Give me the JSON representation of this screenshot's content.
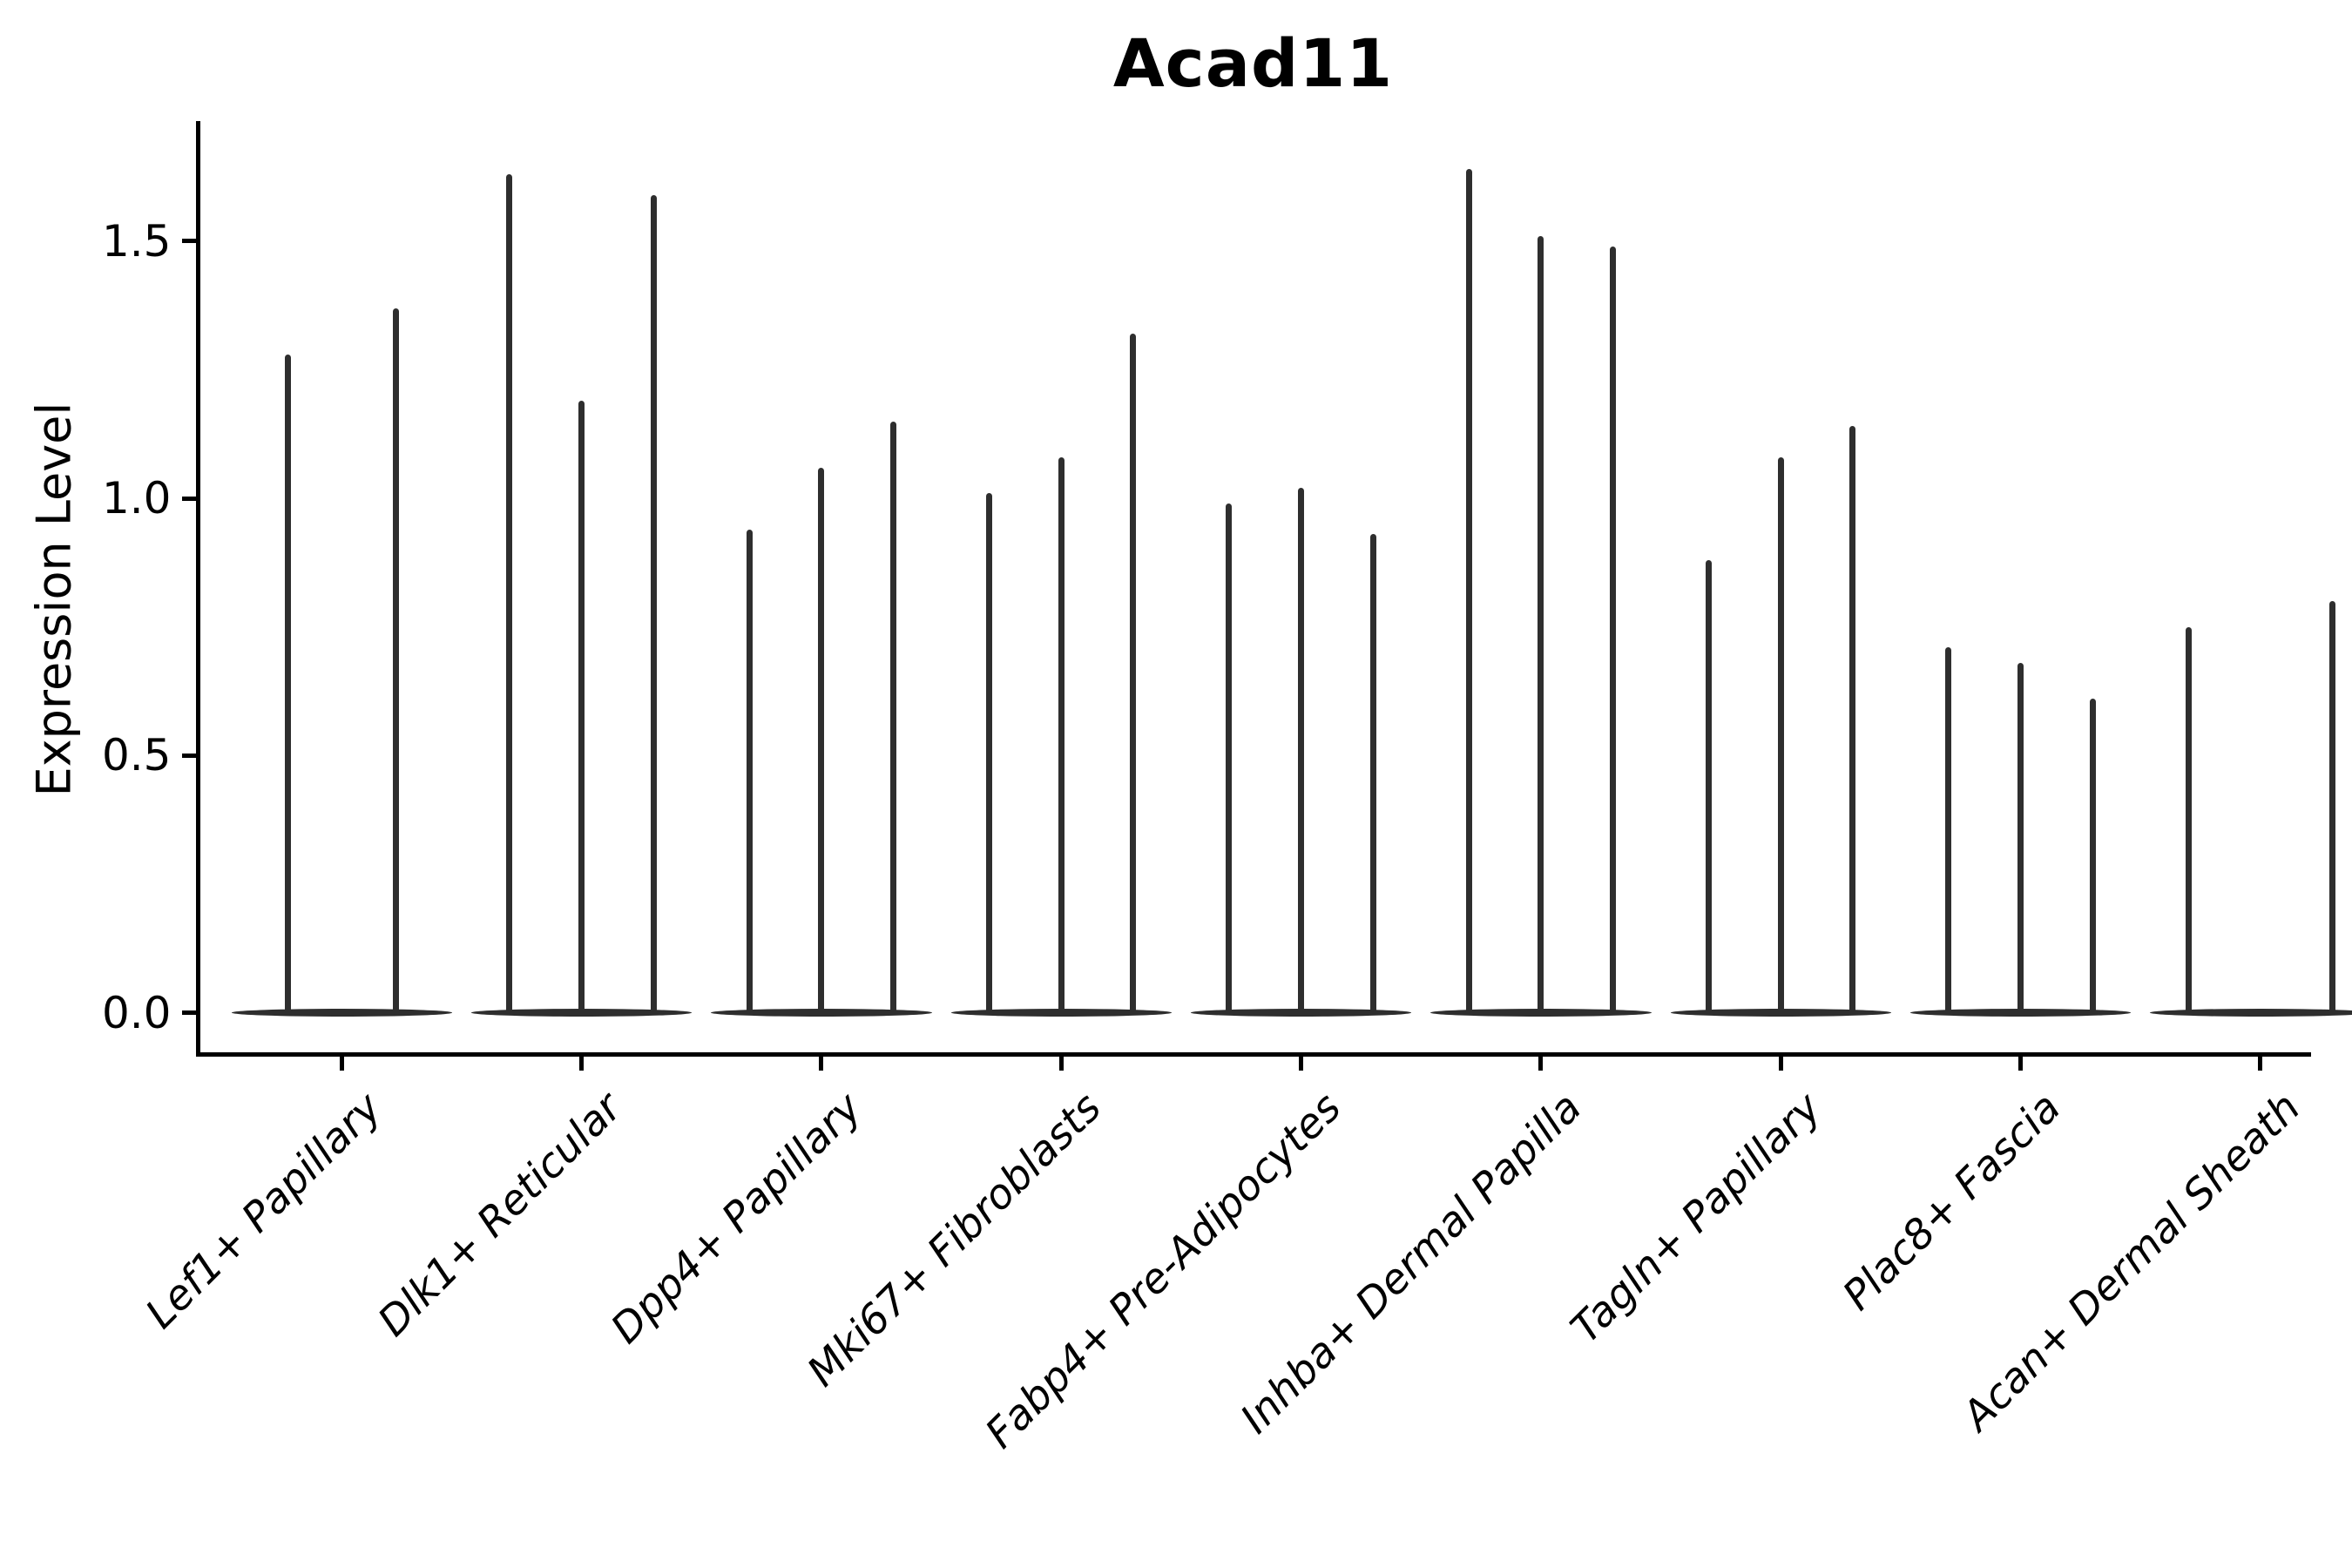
{
  "chart_data": {
    "type": "violin",
    "title": "Acad11",
    "ylabel": "Expression Level",
    "xlabel": "",
    "legend": "none",
    "grid": false,
    "background_color": "#ffffff",
    "violin_color": "#2e2e2e",
    "axis_color": "#000000",
    "x_tick_rotation_deg": 45,
    "x_labels_italic": true,
    "ylim": [
      -0.08,
      1.73
    ],
    "yticks": [
      0.0,
      0.5,
      1.0,
      1.5
    ],
    "ytick_labels": [
      "0.0",
      "0.5",
      "1.0",
      "1.5"
    ],
    "baseline_value": 0.0,
    "categories": [
      "Lef1+ Papillary",
      "Dlk1+ Reticular",
      "Dpp4+ Papillary",
      "Mki67+ Fibroblasts",
      "Fabp4+ Pre-Adipocytes",
      "Inhba+ Dermal Papilla",
      "Tagln+ Papillary",
      "Plac8+ Fascia",
      "Acan+ Dermal Sheath"
    ],
    "groups": [
      {
        "category": "Lef1+ Papillary",
        "violin_offsets": [
          -0.225,
          0.225
        ],
        "max_values": [
          1.28,
          1.37
        ]
      },
      {
        "category": "Dlk1+ Reticular",
        "violin_offsets": [
          -0.3,
          0.0,
          0.3
        ],
        "max_values": [
          1.63,
          1.19,
          1.59
        ]
      },
      {
        "category": "Dpp4+ Papillary",
        "violin_offsets": [
          -0.3,
          0.0,
          0.3
        ],
        "max_values": [
          0.94,
          1.06,
          1.15
        ]
      },
      {
        "category": "Mki67+ Fibroblasts",
        "violin_offsets": [
          -0.3,
          0.0,
          0.3
        ],
        "max_values": [
          1.01,
          1.08,
          1.32
        ]
      },
      {
        "category": "Fabp4+ Pre-Adipocytes",
        "violin_offsets": [
          -0.3,
          0.0,
          0.3
        ],
        "max_values": [
          0.99,
          1.02,
          0.93
        ]
      },
      {
        "category": "Inhba+ Dermal Papilla",
        "violin_offsets": [
          -0.3,
          0.0,
          0.3
        ],
        "max_values": [
          1.64,
          1.51,
          1.49
        ]
      },
      {
        "category": "Tagln+ Papillary",
        "violin_offsets": [
          -0.3,
          0.0,
          0.3
        ],
        "max_values": [
          0.88,
          1.08,
          1.14
        ]
      },
      {
        "category": "Plac8+ Fascia",
        "violin_offsets": [
          -0.3,
          0.0,
          0.3
        ],
        "max_values": [
          0.71,
          0.68,
          0.61
        ]
      },
      {
        "category": "Acan+ Dermal Sheath",
        "violin_offsets": [
          -0.3,
          0.3
        ],
        "max_values": [
          0.75,
          0.8
        ]
      }
    ]
  }
}
